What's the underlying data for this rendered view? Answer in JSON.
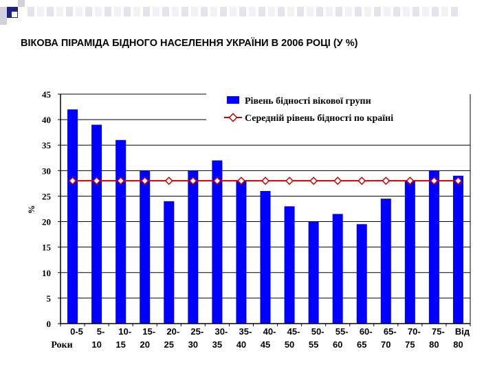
{
  "title": "ВІКОВА ПІРАМІДА БІДНОГО НАСЕЛЕННЯ УКРАЇНИ В 2006 РОЦІ (У %)",
  "colors": {
    "bar": "#0000FF",
    "line": "#CC0000",
    "deco_dark": "#1a237e",
    "deco_light": "#cfd2dc"
  },
  "chart_data": {
    "type": "bar",
    "ylabel": "%",
    "xlabel": "Роки",
    "ylim": [
      0,
      45
    ],
    "yticks": [
      "0",
      "5",
      "10",
      "15",
      "20",
      "25",
      "30",
      "35",
      "40",
      "45"
    ],
    "categories": [
      [
        "0-5"
      ],
      [
        "5-",
        "10"
      ],
      [
        "10-",
        "15"
      ],
      [
        "15-",
        "20"
      ],
      [
        "20-",
        "25"
      ],
      [
        "25-",
        "30"
      ],
      [
        "30-",
        "35"
      ],
      [
        "35-",
        "40"
      ],
      [
        "40-",
        "45"
      ],
      [
        "45-",
        "50"
      ],
      [
        "50-",
        "55"
      ],
      [
        "55-",
        "60"
      ],
      [
        "60-",
        "65"
      ],
      [
        "65-",
        "70"
      ],
      [
        "70-",
        "75"
      ],
      [
        "75-",
        "80"
      ],
      [
        "Від",
        "80"
      ]
    ],
    "grid": "horizontal",
    "legend_position": "top-right",
    "series": [
      {
        "name": "Рівень бідності вікової групи",
        "type": "bar",
        "values": [
          42,
          39,
          36,
          30,
          24,
          30,
          32,
          28,
          26,
          23,
          20,
          21.5,
          19.5,
          24.5,
          28,
          30,
          29
        ]
      },
      {
        "name": "Середній рівень бідності по країні",
        "type": "line",
        "values": [
          28,
          28,
          28,
          28,
          28,
          28,
          28,
          28,
          28,
          28,
          28,
          28,
          28,
          28,
          28,
          28,
          28
        ]
      }
    ]
  }
}
